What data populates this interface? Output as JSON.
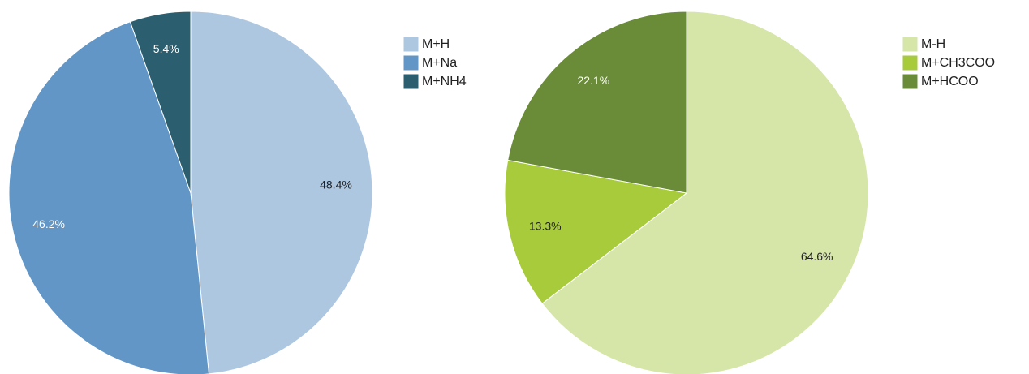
{
  "chart_data": [
    {
      "type": "pie",
      "categories": [
        "M+H",
        "M+Na",
        "M+NH4"
      ],
      "values": [
        48.4,
        46.2,
        5.4
      ],
      "value_labels": [
        "48.4%",
        "46.2%",
        "5.4%"
      ],
      "colors": [
        "#aec7e0",
        "#6196c6",
        "#2b5e6e"
      ]
    },
    {
      "type": "pie",
      "categories": [
        "M-H",
        "M+CH3COO",
        "M+HCOO"
      ],
      "values": [
        64.6,
        13.3,
        22.1
      ],
      "value_labels": [
        "64.6%",
        "13.3%",
        "22.1%"
      ],
      "colors": [
        "#d6e6a8",
        "#a7cb3b",
        "#6a8c38"
      ]
    }
  ]
}
